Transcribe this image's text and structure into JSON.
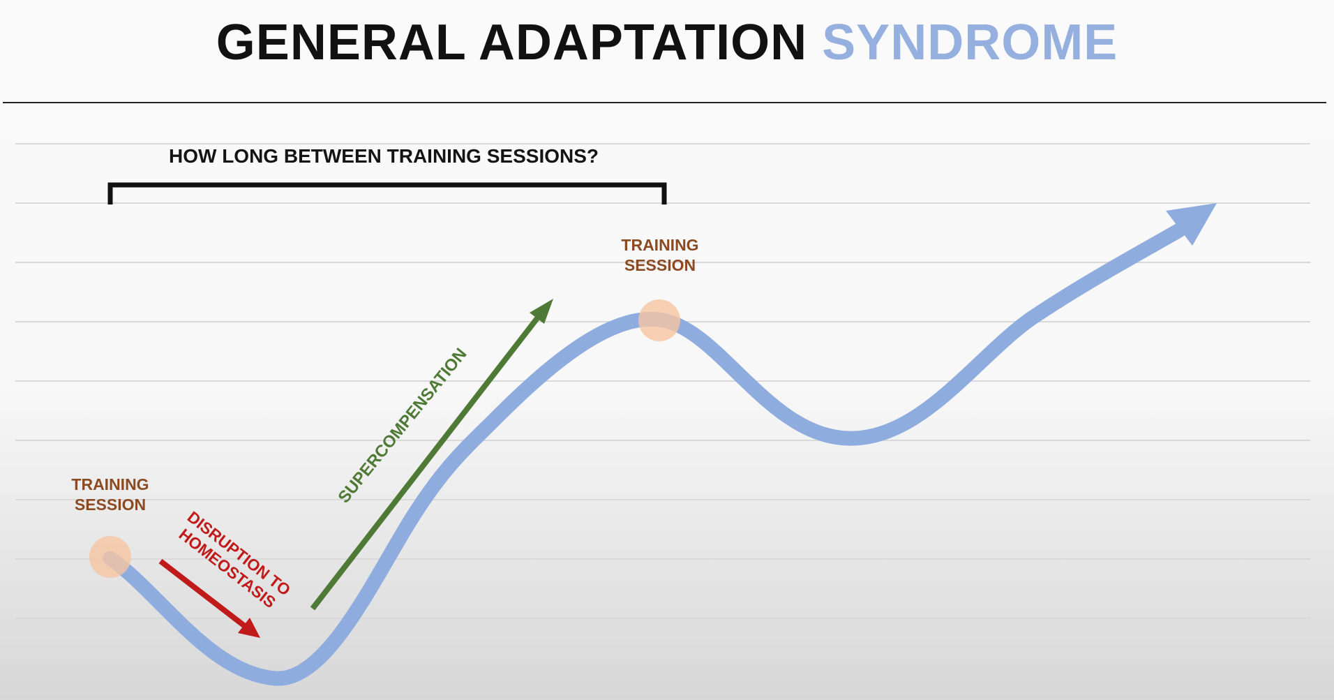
{
  "title": {
    "main": "GENERAL ADAPTATION",
    "accent": "SYNDROME"
  },
  "question": "HOW LONG BETWEEN TRAINING SESSIONS?",
  "session_labels": [
    {
      "line1": "TRAINING",
      "line2": "SESSION"
    },
    {
      "line1": "TRAINING",
      "line2": "SESSION"
    }
  ],
  "supercompensation": "SUPERCOMPENSATION",
  "disruption": {
    "line1": "DISRUPTION TO",
    "line2": "HOMEOSTASIS"
  },
  "colors": {
    "curve": "#8facdf",
    "title_accent": "#95b0df",
    "session_marker": "#f6c6a3",
    "session_text": "#8c4a22",
    "supercompensation": "#4f7a35",
    "disruption": "#c01a1a"
  }
}
